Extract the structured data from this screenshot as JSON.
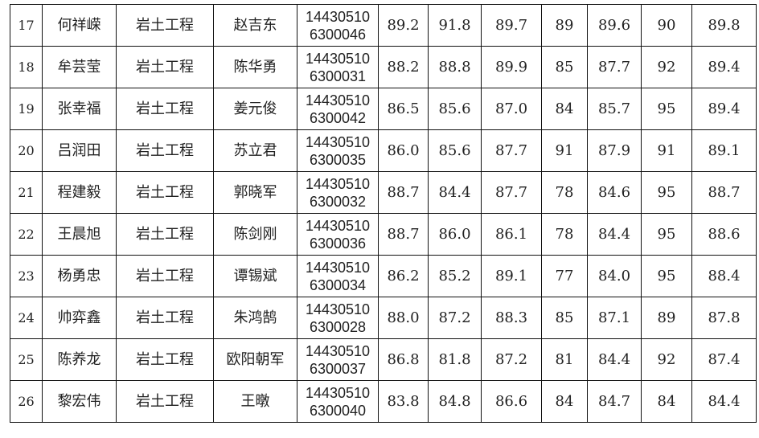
{
  "rows": [
    {
      "no": "17",
      "name": "何祥嵘",
      "major": "岩土工程",
      "advisor": "赵吉东",
      "id1": "14430510",
      "id2": "6300046",
      "s": [
        "89.2",
        "91.8",
        "89.7",
        "89",
        "89.6",
        "90",
        "89.8"
      ]
    },
    {
      "no": "18",
      "name": "牟芸莹",
      "major": "岩土工程",
      "advisor": "陈华勇",
      "id1": "14430510",
      "id2": "6300031",
      "s": [
        "88.2",
        "88.8",
        "89.9",
        "85",
        "87.7",
        "92",
        "89.4"
      ]
    },
    {
      "no": "19",
      "name": "张幸福",
      "major": "岩土工程",
      "advisor": "姜元俊",
      "id1": "14430510",
      "id2": "6300042",
      "s": [
        "86.5",
        "85.6",
        "87.0",
        "84",
        "85.7",
        "95",
        "89.4"
      ]
    },
    {
      "no": "20",
      "name": "吕润田",
      "major": "岩土工程",
      "advisor": "苏立君",
      "id1": "14430510",
      "id2": "6300035",
      "s": [
        "86.0",
        "85.6",
        "87.7",
        "91",
        "87.9",
        "91",
        "89.1"
      ]
    },
    {
      "no": "21",
      "name": "程建毅",
      "major": "岩土工程",
      "advisor": "郭晓军",
      "id1": "14430510",
      "id2": "6300032",
      "s": [
        "88.7",
        "84.4",
        "87.7",
        "78",
        "84.6",
        "95",
        "88.7"
      ]
    },
    {
      "no": "22",
      "name": "王晨旭",
      "major": "岩土工程",
      "advisor": "陈剑刚",
      "id1": "14430510",
      "id2": "6300036",
      "s": [
        "88.7",
        "86.0",
        "86.1",
        "78",
        "84.4",
        "95",
        "88.6"
      ]
    },
    {
      "no": "23",
      "name": "杨勇忠",
      "major": "岩土工程",
      "advisor": "谭锡斌",
      "id1": "14430510",
      "id2": "6300034",
      "s": [
        "86.2",
        "85.2",
        "89.1",
        "77",
        "84.0",
        "95",
        "88.4"
      ]
    },
    {
      "no": "24",
      "name": "帅弈鑫",
      "major": "岩土工程",
      "advisor": "朱鸿鹄",
      "id1": "14430510",
      "id2": "6300028",
      "s": [
        "88.0",
        "87.2",
        "88.3",
        "85",
        "87.1",
        "89",
        "87.8"
      ]
    },
    {
      "no": "25",
      "name": "陈养龙",
      "major": "岩土工程",
      "advisor": "欧阳朝军",
      "id1": "14430510",
      "id2": "6300037",
      "s": [
        "86.8",
        "81.8",
        "87.2",
        "81",
        "84.4",
        "92",
        "87.4"
      ]
    },
    {
      "no": "26",
      "name": "黎宏伟",
      "major": "岩土工程",
      "advisor": "王暾",
      "id1": "14430510",
      "id2": "6300040",
      "s": [
        "83.8",
        "84.8",
        "86.6",
        "84",
        "84.7",
        "84",
        "84.4"
      ]
    }
  ]
}
